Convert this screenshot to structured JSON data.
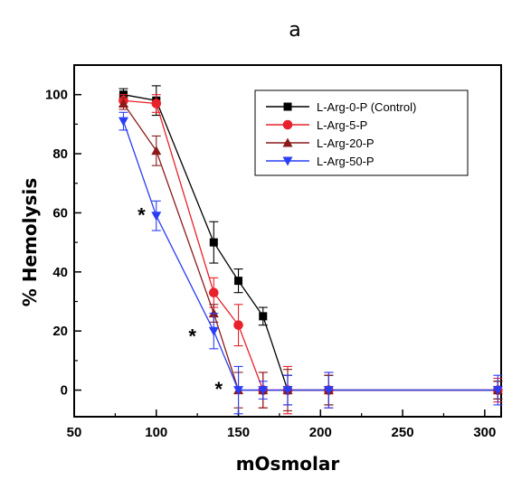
{
  "chart_data": {
    "type": "line",
    "title": "a",
    "xlabel": "mOsmolar",
    "ylabel": "% Hemolysis",
    "xlim": [
      50,
      310
    ],
    "ylim": [
      -9,
      110
    ],
    "xticks": [
      50,
      100,
      150,
      200,
      250,
      300
    ],
    "yticks": [
      0,
      20,
      40,
      60,
      80,
      100
    ],
    "grid": false,
    "legend": "top-right",
    "series": [
      {
        "name": "L-Arg-0-P (Control)",
        "color": "#000000",
        "marker": "square",
        "points": [
          {
            "x": 80,
            "y": 100,
            "err": 2
          },
          {
            "x": 100,
            "y": 98,
            "err": 5
          },
          {
            "x": 135,
            "y": 50,
            "err": 7
          },
          {
            "x": 150,
            "y": 37,
            "err": 4
          },
          {
            "x": 165,
            "y": 25,
            "err": 3
          },
          {
            "x": 180,
            "y": 0,
            "err": 5
          },
          {
            "x": 205,
            "y": 0,
            "err": 5
          },
          {
            "x": 308,
            "y": 0,
            "err": 3
          }
        ]
      },
      {
        "name": "L-Arg-5-P",
        "color": "#e8212a",
        "marker": "circle",
        "points": [
          {
            "x": 80,
            "y": 98,
            "err": 2
          },
          {
            "x": 100,
            "y": 97,
            "err": 3
          },
          {
            "x": 135,
            "y": 33,
            "err": 5
          },
          {
            "x": 150,
            "y": 22,
            "err": 7
          },
          {
            "x": 165,
            "y": 0,
            "err": 6
          },
          {
            "x": 180,
            "y": 0,
            "err": 8
          },
          {
            "x": 205,
            "y": 0,
            "err": 6
          },
          {
            "x": 308,
            "y": 0,
            "err": 4
          }
        ]
      },
      {
        "name": "L-Arg-20-P",
        "color": "#8b1a1a",
        "marker": "triangle-up",
        "points": [
          {
            "x": 80,
            "y": 97,
            "err": 2
          },
          {
            "x": 100,
            "y": 81,
            "err": 5
          },
          {
            "x": 135,
            "y": 26,
            "err": 3
          },
          {
            "x": 150,
            "y": 0,
            "err": 6
          },
          {
            "x": 165,
            "y": 0,
            "err": 6
          },
          {
            "x": 180,
            "y": 0,
            "err": 7
          },
          {
            "x": 205,
            "y": 0,
            "err": 5
          },
          {
            "x": 308,
            "y": 0,
            "err": 3
          }
        ]
      },
      {
        "name": "L-Arg-50-P",
        "color": "#2a3ef5",
        "marker": "triangle-down",
        "points": [
          {
            "x": 80,
            "y": 91,
            "err": 3
          },
          {
            "x": 100,
            "y": 59,
            "err": 5
          },
          {
            "x": 135,
            "y": 20,
            "err": 6
          },
          {
            "x": 150,
            "y": 0,
            "err": 8
          },
          {
            "x": 165,
            "y": 0,
            "err": 3
          },
          {
            "x": 180,
            "y": 0,
            "err": 5
          },
          {
            "x": 205,
            "y": 0,
            "err": 6
          },
          {
            "x": 308,
            "y": 0,
            "err": 5
          }
        ]
      }
    ],
    "annotations": [
      {
        "text": "*",
        "x": 91,
        "y": 57
      },
      {
        "text": "*",
        "x": 122,
        "y": 16
      },
      {
        "text": "*",
        "x": 138,
        "y": -2
      }
    ]
  }
}
